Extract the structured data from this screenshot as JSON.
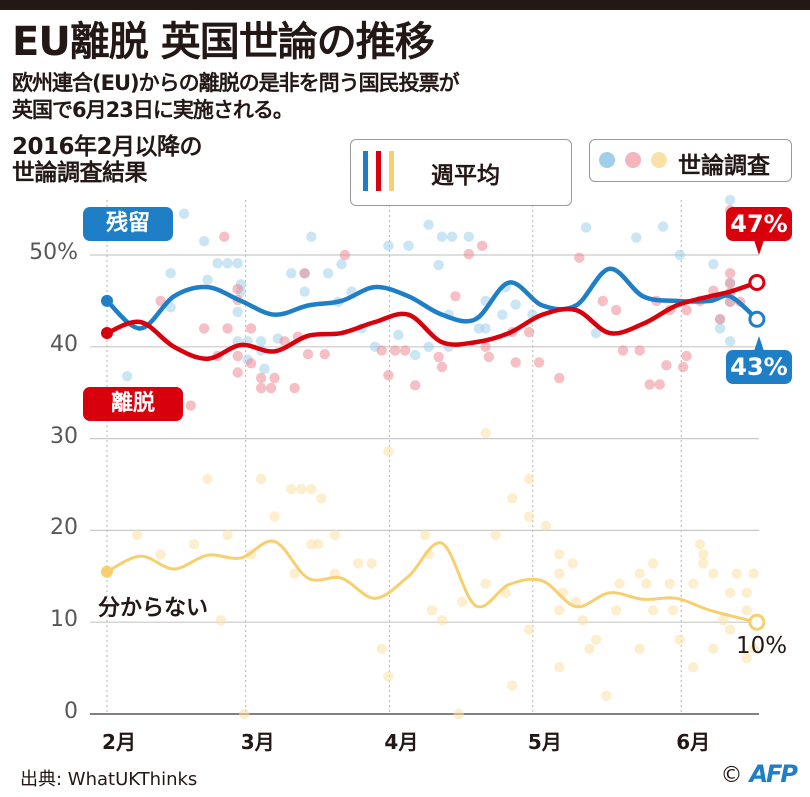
{
  "header": {
    "title": "EU離脱 英国世論の推移",
    "subtitle_lines": [
      "欧州連合(EU)からの離脱の是非を問う国民投票が",
      "英国で6月23日に実施される。"
    ],
    "section_lines": [
      "2016年2月以降の",
      "世論調査結果"
    ]
  },
  "legend": {
    "weekly_label": "週平均",
    "polls_label": "世論調査"
  },
  "labels": {
    "remain": "残留",
    "leave": "離脱",
    "dont_know": "分からない",
    "remain_end": "43%",
    "leave_end": "47%",
    "dont_know_end": "10%"
  },
  "footer": {
    "source": "出典: WhatUKThinks",
    "copyright_symbol": "©",
    "credit": "AFP"
  },
  "colors": {
    "remain": "#1f7fc6",
    "leave": "#d9000d",
    "dont_know": "#f7cf6f",
    "remain_dot": "#9fcfe9",
    "leave_dot": "#ef8b95",
    "dont_know_dot": "#fbe1a6",
    "grid": "#c9c9c9",
    "axis": "#595757"
  },
  "chart_data": {
    "type": "line",
    "title": "2016年2月以降の世論調査結果",
    "xlabel": "",
    "ylabel": "%",
    "x_unit": "weeks since Feb 1, 2016",
    "xlim": [
      0,
      19.4
    ],
    "ylim": [
      0,
      55
    ],
    "y_ticks": [
      0,
      10,
      20,
      30,
      40,
      50
    ],
    "y_tick_labels": [
      "0",
      "10",
      "20",
      "30",
      "40",
      "50%"
    ],
    "x_ticks": [
      0,
      4.14,
      8.43,
      12.71,
      17.14
    ],
    "x_tick_labels": [
      "2月",
      "3月",
      "4月",
      "5月",
      "6月"
    ],
    "grid": true,
    "legend_position": "top-right",
    "series": [
      {
        "name": "残留",
        "kind": "weekly_average",
        "x": [
          0,
          1,
          2,
          3,
          4,
          5,
          6,
          7,
          8,
          9,
          10,
          11,
          12,
          13,
          14,
          15,
          16,
          17,
          18,
          18.6,
          19.4
        ],
        "values": [
          45,
          42,
          45.5,
          46.5,
          45,
          43.5,
          44.5,
          45,
          46.5,
          45.5,
          43.5,
          43,
          47,
          44.5,
          44.5,
          48.5,
          45.5,
          45,
          45,
          45.5,
          43
        ]
      },
      {
        "name": "離脱",
        "kind": "weekly_average",
        "x": [
          0,
          1,
          2,
          3,
          4,
          5,
          6,
          7,
          8,
          9,
          10,
          11,
          12,
          13,
          14,
          15,
          16,
          17,
          18,
          18.6,
          19.4
        ],
        "values": [
          41.5,
          42.7,
          40,
          38.7,
          40.2,
          39.5,
          41.2,
          41.5,
          42.7,
          43.5,
          40.5,
          40.5,
          41.5,
          43.5,
          44,
          41.5,
          42.5,
          44.5,
          45.5,
          46,
          47
        ]
      },
      {
        "name": "分からない",
        "kind": "weekly_average",
        "x": [
          0,
          1,
          2,
          3,
          4,
          5,
          6,
          7,
          8,
          9,
          10,
          11,
          12,
          13,
          14,
          15,
          16,
          17,
          18,
          19.4
        ],
        "values": [
          15.5,
          17.2,
          15.8,
          17.3,
          17,
          18.8,
          14.8,
          14.8,
          12.6,
          15,
          18.6,
          11.8,
          14.1,
          14.5,
          11.7,
          13.2,
          12.5,
          12.6,
          11.3,
          10
        ]
      }
    ],
    "polls": {
      "remain": [
        [
          0.6,
          36.8
        ],
        [
          1.9,
          48
        ],
        [
          2.3,
          54.5
        ],
        [
          1.9,
          44.3
        ],
        [
          2.9,
          51.5
        ],
        [
          3.3,
          49.1
        ],
        [
          3.6,
          49.1
        ],
        [
          3.9,
          49.1
        ],
        [
          4,
          46
        ],
        [
          4,
          46.8
        ],
        [
          3,
          47.3
        ],
        [
          3.9,
          43.8
        ],
        [
          4.2,
          40.6
        ],
        [
          4.6,
          39.6
        ],
        [
          4.6,
          40.6
        ],
        [
          3.9,
          40.6
        ],
        [
          4.2,
          38.6
        ],
        [
          4.7,
          37.6
        ],
        [
          5.1,
          40.9
        ],
        [
          5.5,
          48
        ],
        [
          5.9,
          48
        ],
        [
          6.1,
          52
        ],
        [
          6.6,
          48
        ],
        [
          6.9,
          44.9
        ],
        [
          7,
          49
        ],
        [
          5.9,
          46
        ],
        [
          7.3,
          46
        ],
        [
          8.4,
          51
        ],
        [
          9,
          51
        ],
        [
          9.6,
          53.3
        ],
        [
          9.9,
          48.9
        ],
        [
          10,
          52
        ],
        [
          10.3,
          52
        ],
        [
          8.7,
          41.3
        ],
        [
          9.2,
          39.1
        ],
        [
          7.6,
          42
        ],
        [
          8,
          40
        ],
        [
          9.6,
          40
        ],
        [
          10.2,
          40
        ],
        [
          10.8,
          52
        ],
        [
          10.2,
          43.5
        ],
        [
          11.1,
          42
        ],
        [
          11.3,
          42
        ],
        [
          11.8,
          43.5
        ],
        [
          13.7,
          56
        ],
        [
          13.7,
          56
        ],
        [
          14.3,
          53
        ],
        [
          15.8,
          51.9
        ],
        [
          16.6,
          53.1
        ],
        [
          17.1,
          50
        ],
        [
          18.6,
          56
        ],
        [
          18.1,
          49
        ],
        [
          18.6,
          47
        ],
        [
          18.6,
          44.9
        ],
        [
          18.3,
          43
        ],
        [
          18.3,
          42
        ],
        [
          18.6,
          40.6
        ],
        [
          12.7,
          43.5
        ],
        [
          14.6,
          41.5
        ],
        [
          11.9,
          46.5
        ],
        [
          11.3,
          45
        ],
        [
          12.2,
          44.6
        ]
      ],
      "leave": [
        [
          1.6,
          45
        ],
        [
          3.5,
          52
        ],
        [
          3.9,
          46.3
        ],
        [
          3.9,
          45.1
        ],
        [
          2.9,
          42
        ],
        [
          3.6,
          42
        ],
        [
          4.3,
          42
        ],
        [
          3.3,
          39
        ],
        [
          3.9,
          39
        ],
        [
          4.3,
          38.2
        ],
        [
          3.9,
          37.2
        ],
        [
          4.6,
          36.6
        ],
        [
          5,
          36.6
        ],
        [
          5.3,
          40.6
        ],
        [
          5.7,
          41.1
        ],
        [
          6,
          39.2
        ],
        [
          6.5,
          39.2
        ],
        [
          2.5,
          33.6
        ],
        [
          4.6,
          35.5
        ],
        [
          4.9,
          35.5
        ],
        [
          5.6,
          35.5
        ],
        [
          5.9,
          48
        ],
        [
          7.1,
          50
        ],
        [
          8.2,
          39.6
        ],
        [
          8.4,
          36.9
        ],
        [
          8.6,
          39.6
        ],
        [
          8.9,
          39.6
        ],
        [
          9.2,
          35.8
        ],
        [
          9.9,
          38.9
        ],
        [
          10,
          37.8
        ],
        [
          10.4,
          45.5
        ],
        [
          10.8,
          50.1
        ],
        [
          11.2,
          51
        ],
        [
          11.3,
          40
        ],
        [
          11.4,
          38.9
        ],
        [
          12.1,
          41.6
        ],
        [
          12.6,
          41.6
        ],
        [
          12.2,
          38.3
        ],
        [
          12.9,
          38.3
        ],
        [
          13.5,
          36.6
        ],
        [
          14.1,
          49.7
        ],
        [
          14.8,
          45
        ],
        [
          15.2,
          44
        ],
        [
          16.4,
          45
        ],
        [
          16.8,
          44
        ],
        [
          17.3,
          44
        ],
        [
          17.7,
          45
        ],
        [
          18.1,
          46.1
        ],
        [
          18.6,
          48
        ],
        [
          18.6,
          46.9
        ],
        [
          18.6,
          45.9
        ],
        [
          18.6,
          44.9
        ],
        [
          18.3,
          43
        ],
        [
          18.9,
          44.9
        ],
        [
          18.6,
          54.9
        ],
        [
          15.4,
          39.6
        ],
        [
          15.9,
          39.6
        ],
        [
          16.2,
          35.9
        ],
        [
          16.5,
          35.9
        ],
        [
          17.3,
          39
        ],
        [
          16.7,
          38
        ],
        [
          17.2,
          37.8
        ]
      ],
      "dont_know": [
        [
          0.9,
          19.5
        ],
        [
          1.6,
          17.4
        ],
        [
          2.6,
          18.5
        ],
        [
          3,
          25.6
        ],
        [
          3.6,
          19.5
        ],
        [
          4.3,
          17.4
        ],
        [
          4.6,
          25.6
        ],
        [
          5,
          21.5
        ],
        [
          5.5,
          24.5
        ],
        [
          5.6,
          15.3
        ],
        [
          5.8,
          24.5
        ],
        [
          6.1,
          24.5
        ],
        [
          6.1,
          18.5
        ],
        [
          6.3,
          18.5
        ],
        [
          6.4,
          23.5
        ],
        [
          6.8,
          15.3
        ],
        [
          6.8,
          19.5
        ],
        [
          7.5,
          16.4
        ],
        [
          7.9,
          16.4
        ],
        [
          8.4,
          28.6
        ],
        [
          8.2,
          7.1
        ],
        [
          8.4,
          4.1
        ],
        [
          9.5,
          19.5
        ],
        [
          9.6,
          17.4
        ],
        [
          9.7,
          11.3
        ],
        [
          10,
          10.2
        ],
        [
          10.6,
          12.2
        ],
        [
          11.3,
          30.6
        ],
        [
          11.3,
          14.2
        ],
        [
          11.6,
          19.5
        ],
        [
          11.9,
          13.2
        ],
        [
          12.1,
          23.5
        ],
        [
          12.6,
          25.6
        ],
        [
          12.6,
          21.5
        ],
        [
          13.1,
          20.5
        ],
        [
          13.5,
          17.4
        ],
        [
          13.6,
          13.2
        ],
        [
          13.5,
          15.3
        ],
        [
          13.5,
          11.3
        ],
        [
          13.9,
          16.4
        ],
        [
          14,
          12.2
        ],
        [
          14.2,
          10.2
        ],
        [
          14.6,
          8.1
        ],
        [
          14.4,
          7.1
        ],
        [
          15.2,
          11.3
        ],
        [
          15.3,
          14.2
        ],
        [
          15.9,
          15.3
        ],
        [
          16.1,
          14.2
        ],
        [
          16.3,
          16.4
        ],
        [
          16.8,
          14.2
        ],
        [
          16.9,
          11.3
        ],
        [
          17.1,
          8.1
        ],
        [
          17.5,
          14.2
        ],
        [
          17.7,
          18.5
        ],
        [
          17.8,
          17.4
        ],
        [
          17.8,
          16.4
        ],
        [
          18.1,
          15.3
        ],
        [
          18.4,
          10.2
        ],
        [
          18.6,
          13.2
        ],
        [
          18.8,
          15.3
        ],
        [
          19.1,
          11.3
        ],
        [
          19.1,
          13.2
        ],
        [
          19.3,
          7.1
        ],
        [
          19.1,
          6.1
        ],
        [
          19.3,
          15.3
        ],
        [
          18.6,
          9.2
        ],
        [
          18.1,
          7.1
        ],
        [
          13.5,
          5.1
        ],
        [
          12.1,
          3.1
        ],
        [
          17.5,
          5.1
        ],
        [
          14.9,
          2
        ],
        [
          15.9,
          7.1
        ],
        [
          16.3,
          11.3
        ],
        [
          12.6,
          9.2
        ],
        [
          3.4,
          10.2
        ],
        [
          4.1,
          0
        ],
        [
          10.5,
          0
        ]
      ]
    }
  }
}
